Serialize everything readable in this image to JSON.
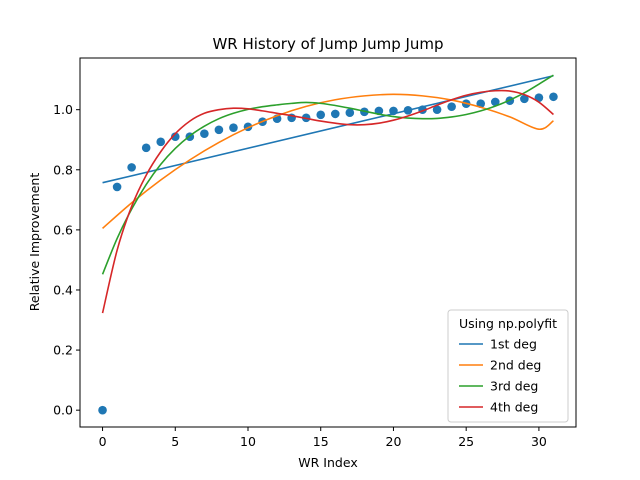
{
  "chart_data": {
    "type": "scatter",
    "title": "WR History of Jump Jump Jump",
    "xlabel": "WR Index",
    "ylabel": "Relative Improvement",
    "xlim": [
      -1.55,
      32.55
    ],
    "ylim": [
      -0.056,
      1.172
    ],
    "xticks": [
      0,
      5,
      10,
      15,
      20,
      25,
      30
    ],
    "yticks": [
      0.0,
      0.2,
      0.4,
      0.6,
      0.8,
      1.0
    ],
    "ytick_labels": [
      "0.0",
      "0.2",
      "0.4",
      "0.6",
      "0.8",
      "1.0"
    ],
    "grid": false,
    "legend": {
      "title": "Using np.polyfit",
      "position": "lower-right"
    },
    "points": {
      "color": "#1f77b4",
      "x": [
        0,
        1,
        2,
        3,
        4,
        5,
        6,
        7,
        8,
        9,
        10,
        11,
        12,
        13,
        14,
        15,
        16,
        17,
        18,
        19,
        20,
        21,
        22,
        23,
        24,
        25,
        26,
        27,
        28,
        29,
        30,
        31
      ],
      "y": [
        0.0,
        0.743,
        0.808,
        0.873,
        0.893,
        0.91,
        0.91,
        0.92,
        0.933,
        0.94,
        0.943,
        0.96,
        0.97,
        0.973,
        0.973,
        0.983,
        0.986,
        0.99,
        0.993,
        0.996,
        0.996,
        0.998,
        1.0,
        1.0,
        1.01,
        1.02,
        1.02,
        1.026,
        1.03,
        1.036,
        1.04,
        1.043
      ]
    },
    "series": [
      {
        "name": "1st deg",
        "color": "#1f77b4",
        "x": [
          0,
          31
        ],
        "y": [
          0.757,
          1.113
        ]
      },
      {
        "name": "2nd deg",
        "color": "#ff7f0e",
        "x": [
          0,
          2,
          4,
          6,
          8,
          10,
          12,
          14,
          16,
          18,
          20,
          22,
          24,
          26,
          28,
          30,
          31
        ],
        "y": [
          0.605,
          0.69,
          0.766,
          0.833,
          0.891,
          0.94,
          0.98,
          1.011,
          1.033,
          1.046,
          1.051,
          1.046,
          1.032,
          1.008,
          0.976,
          0.935,
          0.963
        ]
      },
      {
        "name": "3rd deg",
        "color": "#2ca02c",
        "x": [
          0,
          1,
          2,
          3,
          4,
          5,
          6,
          7,
          8,
          9,
          10,
          11,
          12,
          13,
          14,
          15,
          16,
          17,
          18,
          19,
          20,
          21,
          22,
          23,
          24,
          25,
          26,
          27,
          28,
          29,
          30,
          31
        ],
        "y": [
          0.452,
          0.571,
          0.669,
          0.751,
          0.818,
          0.871,
          0.913,
          0.945,
          0.97,
          0.988,
          1.001,
          1.01,
          1.016,
          1.021,
          1.024,
          1.021,
          1.014,
          1.005,
          0.995,
          0.985,
          0.977,
          0.972,
          0.97,
          0.971,
          0.976,
          0.984,
          0.996,
          1.012,
          1.032,
          1.056,
          1.085,
          1.115
        ]
      },
      {
        "name": "4th deg",
        "color": "#d62728",
        "x": [
          0,
          1,
          2,
          3,
          4,
          5,
          6,
          7,
          8,
          9,
          10,
          11,
          12,
          13,
          14,
          15,
          16,
          17,
          18,
          19,
          20,
          21,
          22,
          23,
          24,
          25,
          26,
          27,
          28,
          29,
          30,
          31
        ],
        "y": [
          0.323,
          0.532,
          0.678,
          0.782,
          0.86,
          0.92,
          0.962,
          0.988,
          1.0,
          1.005,
          1.003,
          0.996,
          0.988,
          0.98,
          0.971,
          0.962,
          0.955,
          0.95,
          0.95,
          0.955,
          0.965,
          0.979,
          0.996,
          1.015,
          1.033,
          1.048,
          1.058,
          1.063,
          1.062,
          1.05,
          1.025,
          0.984
        ]
      }
    ]
  }
}
